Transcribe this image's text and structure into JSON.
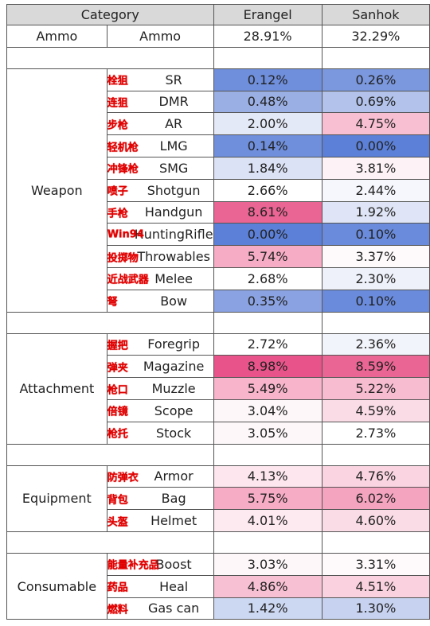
{
  "headers": {
    "category": "Category",
    "erangel": "Erangel",
    "sanhok": "Sanhok"
  },
  "ammo": {
    "group": "Ammo",
    "item": "Ammo",
    "erangel": "28.91%",
    "sanhok": "32.29%"
  },
  "groups": [
    {
      "name": "Weapon",
      "items": [
        {
          "cn": "栓狙",
          "en": "SR",
          "e": "0.12%",
          "s": "0.26%",
          "ec": "#6f8fdc",
          "sc": "#7b98de"
        },
        {
          "cn": "连狙",
          "en": "DMR",
          "e": "0.48%",
          "s": "0.69%",
          "ec": "#9aafe4",
          "sc": "#b2c2ea"
        },
        {
          "cn": "步枪",
          "en": "AR",
          "e": "2.00%",
          "s": "4.75%",
          "ec": "#e4e9f7",
          "sc": "#f8bfd2"
        },
        {
          "cn": "轻机枪",
          "en": "LMG",
          "e": "0.14%",
          "s": "0.00%",
          "ec": "#6f8fdc",
          "sc": "#5c80d8"
        },
        {
          "cn": "冲锋枪",
          "en": "SMG",
          "e": "1.84%",
          "s": "3.81%",
          "ec": "#dbe2f5",
          "sc": "#fdf3f6"
        },
        {
          "cn": "喷子",
          "en": "Shotgun",
          "e": "2.66%",
          "s": "2.44%",
          "ec": "#ffffff",
          "sc": "#f6f7fc"
        },
        {
          "cn": "手枪",
          "en": "Handgun",
          "e": "8.61%",
          "s": "1.92%",
          "ec": "#ea6593",
          "sc": "#dfe5f6"
        },
        {
          "cn": "Win94",
          "en": "HuntingRifle",
          "e": "0.00%",
          "s": "0.10%",
          "ec": "#5c80d8",
          "sc": "#6a8bdb"
        },
        {
          "cn": "投掷物",
          "en": "Throwables",
          "e": "5.74%",
          "s": "3.37%",
          "ec": "#f6acc4",
          "sc": "#fef9fb"
        },
        {
          "cn": "近战武器",
          "en": "Melee",
          "e": "2.68%",
          "s": "2.30%",
          "ec": "#ffffff",
          "sc": "#eef1fa"
        },
        {
          "cn": "弩",
          "en": "Bow",
          "e": "0.35%",
          "s": "0.10%",
          "ec": "#8aa2e1",
          "sc": "#6a8bdb"
        }
      ]
    },
    {
      "name": "Attachment",
      "items": [
        {
          "cn": "握把",
          "en": "Foregrip",
          "e": "2.72%",
          "s": "2.36%",
          "ec": "#ffffff",
          "sc": "#f2f4fb"
        },
        {
          "cn": "弹夹",
          "en": "Magazine",
          "e": "8.98%",
          "s": "8.59%",
          "ec": "#e85489",
          "sc": "#ea6593"
        },
        {
          "cn": "枪口",
          "en": "Muzzle",
          "e": "5.49%",
          "s": "5.22%",
          "ec": "#f7b4ca",
          "sc": "#f8bcd0"
        },
        {
          "cn": "倍镜",
          "en": "Scope",
          "e": "3.04%",
          "s": "4.59%",
          "ec": "#fdf7f9",
          "sc": "#fadce6"
        },
        {
          "cn": "枪托",
          "en": "Stock",
          "e": "3.05%",
          "s": "2.73%",
          "ec": "#fdf7f9",
          "sc": "#ffffff"
        }
      ]
    },
    {
      "name": "Equipment",
      "items": [
        {
          "cn": "防弹衣",
          "en": "Armor",
          "e": "4.13%",
          "s": "4.76%",
          "ec": "#fde6ee",
          "sc": "#fad5e1"
        },
        {
          "cn": "背包",
          "en": "Bag",
          "e": "5.75%",
          "s": "6.02%",
          "ec": "#f6acc4",
          "sc": "#f5a4bf"
        },
        {
          "cn": "头盔",
          "en": "Helmet",
          "e": "4.01%",
          "s": "4.60%",
          "ec": "#fde9f0",
          "sc": "#fadce6"
        }
      ]
    },
    {
      "name": "Consumable",
      "items": [
        {
          "cn": "能量补充品",
          "en": "Boost",
          "e": "3.03%",
          "s": "3.31%",
          "ec": "#fdf7f9",
          "sc": "#fefafc"
        },
        {
          "cn": "药品",
          "en": "Heal",
          "e": "4.86%",
          "s": "4.51%",
          "ec": "#f8c1d3",
          "sc": "#fad1de"
        },
        {
          "cn": "燃料",
          "en": "Gas can",
          "e": "1.42%",
          "s": "1.30%",
          "ec": "#ccd7f1",
          "sc": "#c6d2ef"
        }
      ]
    }
  ]
}
